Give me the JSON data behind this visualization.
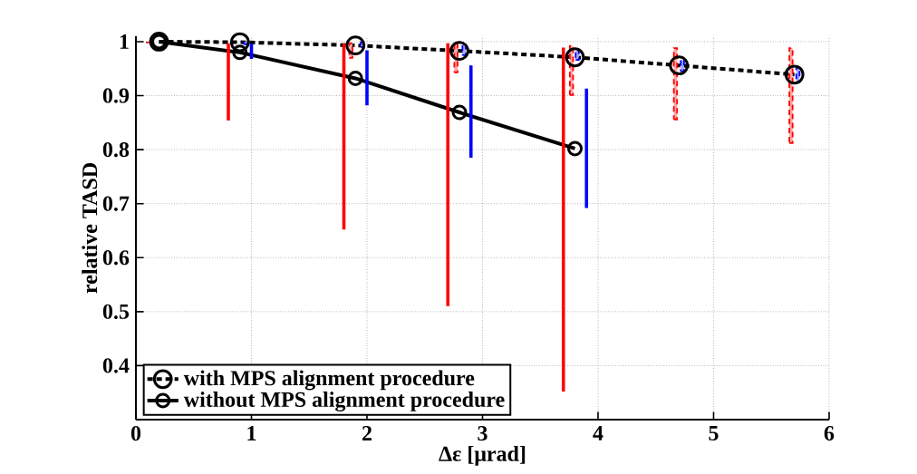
{
  "chart_data": {
    "type": "line",
    "xlabel": "Δε [μrad]",
    "ylabel": "relative TASD",
    "xlim": [
      0,
      6
    ],
    "ylim": [
      0.3,
      1.01
    ],
    "xticks": [
      0,
      1,
      2,
      3,
      4,
      5,
      6
    ],
    "yticks": [
      0.4,
      0.5,
      0.6,
      0.7,
      0.8,
      0.9,
      1
    ],
    "grid": true,
    "legend": "bottom left",
    "marker": "circle",
    "series": [
      {
        "name": "with MPS alignment procedure",
        "color": "#000000",
        "line_style": "dashed",
        "x": [
          0.2,
          0.9,
          1.9,
          2.8,
          3.8,
          4.7,
          5.7
        ],
        "values": [
          1.0,
          0.999,
          0.993,
          0.983,
          0.971,
          0.956,
          0.939
        ]
      },
      {
        "name": "without MPS alignment procedure",
        "color": "#000000",
        "line_style": "solid",
        "x": [
          0.2,
          0.9,
          1.9,
          2.8,
          3.8
        ],
        "values": [
          1.0,
          0.98,
          0.932,
          0.869,
          0.802
        ]
      },
      {
        "type": "bar",
        "color": "#ff0000",
        "line_style": "solid",
        "x": [
          0.1,
          0.8,
          1.8,
          2.7,
          3.7
        ],
        "base": [
          0.997,
          0.854,
          0.652,
          0.51,
          0.352
        ],
        "values": [
          0.003,
          0.143,
          0.345,
          0.487,
          0.637
        ]
      },
      {
        "type": "bar",
        "color": "#0000ff",
        "line_style": "solid",
        "x": [
          1.0,
          2.0,
          2.9,
          3.9
        ],
        "base": [
          0.968,
          0.882,
          0.785,
          0.692
        ],
        "values": [
          0.029,
          0.102,
          0.171,
          0.221
        ]
      },
      {
        "type": "bar",
        "color": "#ff0000",
        "line_style": "dashed",
        "x": [
          1.86,
          2.77,
          3.77,
          4.67,
          5.67
        ],
        "base": [
          0.97,
          0.943,
          0.901,
          0.856,
          0.812
        ],
        "values": [
          0.027,
          0.054,
          0.091,
          0.132,
          0.176
        ]
      },
      {
        "type": "bar",
        "color": "#0000ff",
        "line_style": "dashed",
        "x": [
          0.95,
          1.96,
          2.84,
          3.82,
          4.73,
          5.73
        ],
        "base": [
          0.995,
          0.99,
          0.975,
          0.966,
          0.945,
          0.925
        ],
        "values": [
          0.005,
          0.009,
          0.02,
          0.018,
          0.021,
          0.027
        ]
      }
    ]
  }
}
